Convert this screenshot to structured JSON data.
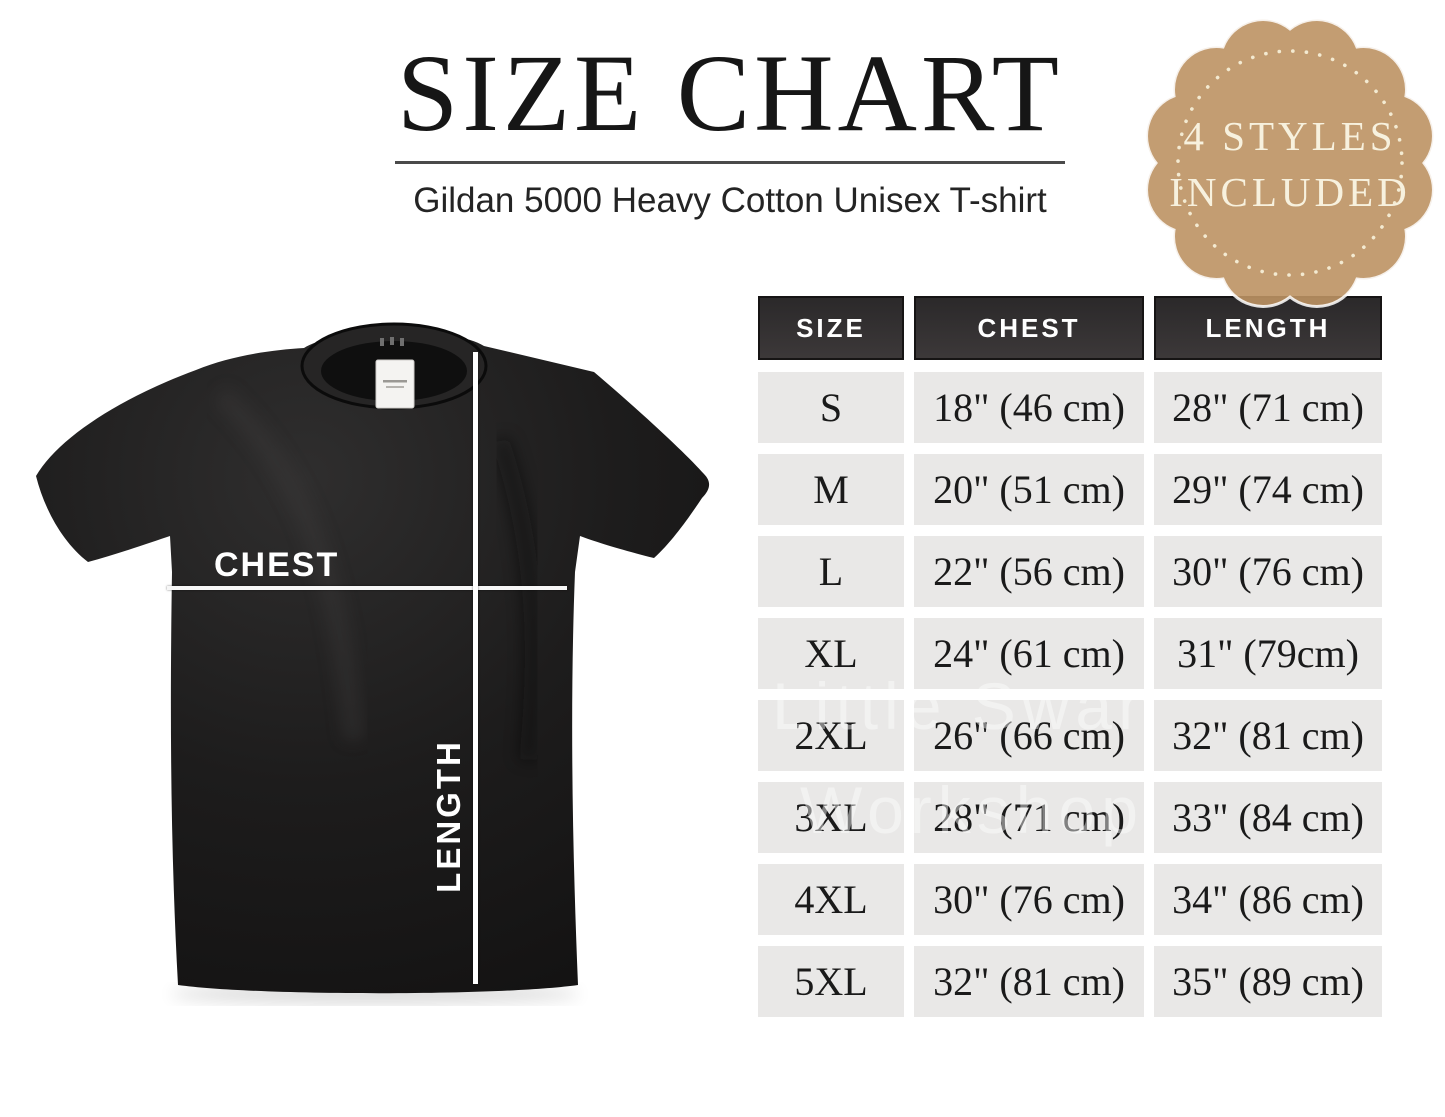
{
  "page": {
    "background": "#ffffff"
  },
  "header": {
    "title": "SIZE CHART",
    "subtitle": "Gildan 5000 Heavy Cotton Unisex T-shirt",
    "title_color": "#161616"
  },
  "badge": {
    "line1": "4 STYLES",
    "line2": "INCLUDED",
    "fill": "#bd9263",
    "text_color": "#f7f1de"
  },
  "diagram": {
    "chest_label": "CHEST",
    "length_label": "LENGTH",
    "shirt_color": "#1c1c1c",
    "line_color": "#ffffff"
  },
  "watermark": {
    "line1": "Little Swan",
    "line2": "Workshop"
  },
  "size_table": {
    "header_bg": "#2e2c2d",
    "cell_bg": "#e9e8e7",
    "columns": [
      "SIZE",
      "CHEST",
      "LENGTH"
    ],
    "rows": [
      {
        "size": "S",
        "chest": "18\" (46 cm)",
        "length": "28\" (71 cm)"
      },
      {
        "size": "M",
        "chest": "20\" (51 cm)",
        "length": "29\" (74 cm)"
      },
      {
        "size": "L",
        "chest": "22\" (56 cm)",
        "length": "30\" (76 cm)"
      },
      {
        "size": "XL",
        "chest": "24\" (61 cm)",
        "length": "31\" (79cm)"
      },
      {
        "size": "2XL",
        "chest": "26\" (66 cm)",
        "length": "32\" (81 cm)"
      },
      {
        "size": "3XL",
        "chest": "28\" (71 cm)",
        "length": "33\" (84 cm)"
      },
      {
        "size": "4XL",
        "chest": "30\" (76 cm)",
        "length": "34\" (86 cm)"
      },
      {
        "size": "5XL",
        "chest": "32\" (81 cm)",
        "length": "35\" (89 cm)"
      }
    ]
  },
  "chart_data": {
    "type": "table",
    "title": "SIZE CHART",
    "subtitle": "Gildan 5000 Heavy Cotton Unisex T-shirt",
    "badge": "4 STYLES INCLUDED",
    "columns": [
      "SIZE",
      "CHEST",
      "LENGTH"
    ],
    "rows": [
      [
        "S",
        "18\" (46 cm)",
        "28\" (71 cm)"
      ],
      [
        "M",
        "20\" (51 cm)",
        "29\" (74 cm)"
      ],
      [
        "L",
        "22\" (56 cm)",
        "30\" (76 cm)"
      ],
      [
        "XL",
        "24\" (61 cm)",
        "31\" (79cm)"
      ],
      [
        "2XL",
        "26\" (66 cm)",
        "32\" (81 cm)"
      ],
      [
        "3XL",
        "28\" (71 cm)",
        "33\" (84 cm)"
      ],
      [
        "4XL",
        "30\" (76 cm)",
        "34\" (86 cm)"
      ],
      [
        "5XL",
        "32\" (81 cm)",
        "35\" (89 cm)"
      ]
    ]
  }
}
